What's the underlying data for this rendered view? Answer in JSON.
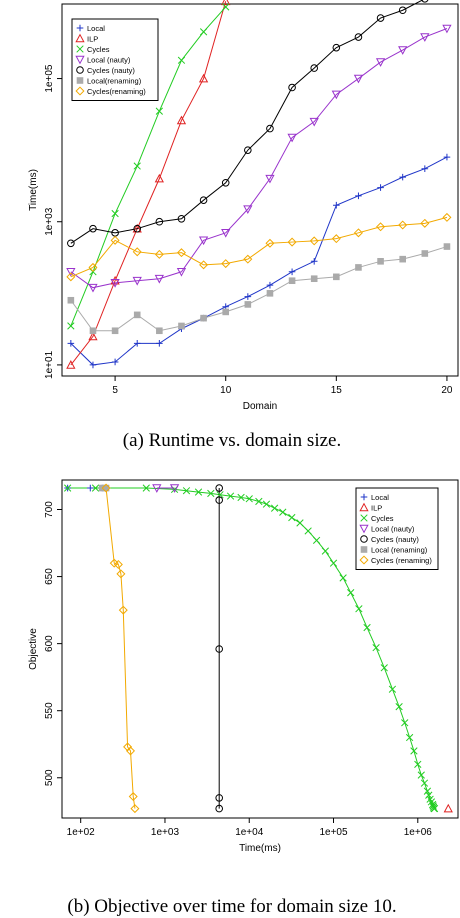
{
  "captions": {
    "a": "(a) Runtime vs. domain size.",
    "b": "(b) Objective over time for domain size 10."
  },
  "chart_data": [
    {
      "type": "line",
      "xlabel": "Domain",
      "ylabel": "Time(ms)",
      "xscale": "linear",
      "yscale": "log",
      "xlim": [
        2.6,
        20.5
      ],
      "ylim": [
        7,
        1100000
      ],
      "xticks": [
        5,
        10,
        15,
        20
      ],
      "xtick_labels": [
        "5",
        "10",
        "15",
        "20"
      ],
      "yticks": [
        10,
        1000,
        100000
      ],
      "ytick_labels": [
        "1e+01",
        "1e+03",
        "1e+05"
      ],
      "legend_position": "top-left",
      "grid": false,
      "series": [
        {
          "name": "Local",
          "color": "#1f35c8",
          "marker": "plus",
          "x": [
            3,
            4,
            5,
            6,
            7,
            8,
            9,
            10,
            11,
            12,
            13,
            14,
            15,
            16,
            17,
            18,
            19,
            20
          ],
          "y": [
            20,
            10,
            11,
            20,
            20,
            32,
            45,
            65,
            90,
            130,
            200,
            280,
            1700,
            2300,
            3000,
            4200,
            5500,
            8000
          ]
        },
        {
          "name": "ILP",
          "color": "#e02222",
          "marker": "triangle-up",
          "x": [
            3,
            4,
            5,
            6,
            7,
            8,
            9,
            10
          ],
          "y": [
            10,
            25,
            150,
            800,
            4000,
            26000,
            100000,
            1200000
          ]
        },
        {
          "name": "Cycles",
          "color": "#22cc22",
          "marker": "x",
          "x": [
            3,
            4,
            5,
            6,
            7,
            8,
            9,
            10
          ],
          "y": [
            35,
            200,
            1300,
            6000,
            35000,
            180000,
            450000,
            1000000
          ]
        },
        {
          "name": "Local (nauty)",
          "color": "#9933cc",
          "marker": "triangle-down",
          "x": [
            3,
            4,
            5,
            6,
            7,
            8,
            9,
            10,
            11,
            12,
            13,
            14,
            15,
            16,
            17,
            18,
            19,
            20
          ],
          "y": [
            200,
            120,
            140,
            150,
            160,
            200,
            550,
            700,
            1500,
            4000,
            15000,
            25000,
            60000,
            100000,
            170000,
            250000,
            380000,
            500000
          ]
        },
        {
          "name": "Cycles (nauty)",
          "color": "#000000",
          "marker": "circle",
          "x": [
            3,
            4,
            5,
            6,
            7,
            8,
            9,
            10,
            11,
            12,
            13,
            14,
            15,
            16,
            17,
            18,
            19,
            20
          ],
          "y": [
            500,
            800,
            700,
            800,
            1000,
            1100,
            2000,
            3500,
            10000,
            20000,
            75000,
            140000,
            270000,
            380000,
            700000,
            900000,
            1300000,
            1700000
          ]
        },
        {
          "name": "Local(renaming)",
          "color": "#aaaaaa",
          "marker": "square",
          "x": [
            3,
            4,
            5,
            6,
            7,
            8,
            9,
            10,
            11,
            12,
            13,
            14,
            15,
            16,
            17,
            18,
            19,
            20
          ],
          "y": [
            80,
            30,
            30,
            50,
            30,
            35,
            45,
            55,
            70,
            100,
            150,
            160,
            170,
            230,
            280,
            300,
            360,
            450
          ]
        },
        {
          "name": "Cycles(renaming)",
          "color": "#f2a900",
          "marker": "diamond",
          "x": [
            3,
            4,
            5,
            6,
            7,
            8,
            9,
            10,
            11,
            12,
            13,
            14,
            15,
            16,
            17,
            18,
            19,
            20
          ],
          "y": [
            170,
            230,
            550,
            380,
            350,
            370,
            250,
            260,
            300,
            500,
            520,
            540,
            580,
            700,
            850,
            900,
            950,
            1150
          ]
        }
      ]
    },
    {
      "type": "scatter",
      "xlabel": "Time(ms)",
      "ylabel": "Objective",
      "xscale": "log",
      "yscale": "linear",
      "xlim": [
        60,
        3000000
      ],
      "ylim": [
        470,
        722
      ],
      "xticks": [
        100,
        1000,
        10000,
        100000,
        1000000
      ],
      "xtick_labels": [
        "1e+02",
        "1e+03",
        "1e+04",
        "1e+05",
        "1e+06"
      ],
      "yticks": [
        500,
        550,
        600,
        650,
        700
      ],
      "ytick_labels": [
        "500",
        "550",
        "600",
        "650",
        "700"
      ],
      "legend_position": "top-right",
      "grid": false,
      "series": [
        {
          "name": "Local",
          "color": "#1f35c8",
          "marker": "plus",
          "line": true,
          "x": [
            70,
            130,
            180
          ],
          "y": [
            716,
            716,
            716
          ]
        },
        {
          "name": "ILP",
          "color": "#e02222",
          "marker": "triangle-up",
          "line": false,
          "x": [
            2300000
          ],
          "y": [
            477
          ]
        },
        {
          "name": "Cycles",
          "color": "#22cc22",
          "marker": "x",
          "line": true,
          "x": [
            70,
            150,
            600,
            1300,
            1800,
            2500,
            3500,
            4500,
            6000,
            8000,
            10000,
            13000,
            16000,
            20000,
            25000,
            32000,
            40000,
            50000,
            63000,
            80000,
            100000,
            130000,
            160000,
            200000,
            250000,
            320000,
            400000,
            500000,
            600000,
            700000,
            800000,
            900000,
            1000000,
            1100000,
            1200000,
            1300000,
            1350000,
            1400000,
            1450000,
            1500000,
            1520000,
            1540000,
            1560000,
            1580000
          ],
          "y": [
            716,
            716,
            716,
            715,
            714,
            713,
            712,
            711,
            710,
            709,
            708,
            706,
            704,
            701,
            698,
            694,
            690,
            684,
            677,
            669,
            660,
            649,
            638,
            626,
            612,
            597,
            582,
            566,
            553,
            541,
            530,
            520,
            510,
            502,
            496,
            490,
            487,
            484,
            482,
            480,
            479,
            478,
            477,
            477
          ]
        },
        {
          "name": "Local (nauty)",
          "color": "#9933cc",
          "marker": "triangle-down",
          "line": true,
          "x": [
            800,
            1300
          ],
          "y": [
            716,
            716
          ]
        },
        {
          "name": "Cycles (nauty)",
          "color": "#000000",
          "marker": "circle",
          "line": true,
          "x": [
            4400,
            4400,
            4400,
            4400,
            4400
          ],
          "y": [
            716,
            707,
            596,
            485,
            477
          ]
        },
        {
          "name": "Local (renaming)",
          "color": "#aaaaaa",
          "marker": "square",
          "line": true,
          "x": [
            180,
            200
          ],
          "y": [
            716,
            716
          ]
        },
        {
          "name": "Cycles (renaming)",
          "color": "#f2a900",
          "marker": "diamond",
          "line": true,
          "x": [
            200,
            250,
            280,
            300,
            320,
            360,
            390,
            420,
            440
          ],
          "y": [
            716,
            660,
            659,
            652,
            625,
            523,
            520,
            486,
            477
          ]
        }
      ]
    }
  ]
}
